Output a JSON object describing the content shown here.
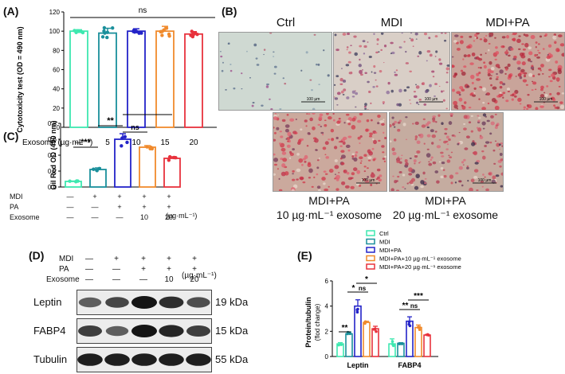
{
  "panelA": {
    "label": "(A)",
    "ylabel": "Cytotoxicity test (OD = 490 nm)",
    "yticks": [
      "0",
      "20",
      "40",
      "60",
      "80",
      "100",
      "120"
    ],
    "xprefix": "Exosome (µg·mL⁻¹)",
    "xlabels": [
      "—",
      "5",
      "10",
      "15",
      "20"
    ],
    "sig": "ns",
    "chart_data": {
      "type": "bar",
      "title": "",
      "ylabel": "Cytotoxicity test (OD = 490 nm)",
      "ylim": [
        0,
        120
      ],
      "categories": [
        "—",
        "5",
        "10",
        "15",
        "20"
      ],
      "values": [
        100,
        98,
        100,
        100,
        97
      ],
      "errors": [
        1.5,
        5,
        2.5,
        5,
        2.5
      ],
      "colors": [
        "#3ee8b0",
        "#1a8f9b",
        "#2323c8",
        "#f08a2c",
        "#e8323c"
      ]
    }
  },
  "panelB": {
    "label": "(B)",
    "top": [
      "Ctrl",
      "MDI",
      "MDI+PA"
    ],
    "bottom": [
      {
        "line1": "MDI+PA",
        "line2": "10 µg·mL⁻¹ exosome"
      },
      {
        "line1": "MDI+PA",
        "line2": "20 µg·mL⁻¹ exosome"
      }
    ],
    "scalebar": "100 µm"
  },
  "panelC": {
    "label": "(C)",
    "ylabel": "Oil Red OD (490 nm)",
    "yticks": [
      "0.0",
      "0.2",
      "0.4",
      "0.6",
      "0.8"
    ],
    "rows": [
      {
        "name": "MDI",
        "vals": [
          "—",
          "+",
          "+",
          "+",
          "+"
        ]
      },
      {
        "name": "PA",
        "vals": [
          "—",
          "—",
          "+",
          "+",
          "+"
        ]
      },
      {
        "name": "Exosome",
        "vals": [
          "—",
          "—",
          "—",
          "10",
          "20"
        ]
      }
    ],
    "unit": "(µg·mL⁻¹)",
    "sig": [
      "***",
      "**",
      "ns",
      "*"
    ],
    "chart_data": {
      "type": "bar",
      "title": "",
      "ylabel": "Oil Red OD (490 nm)",
      "ylim": [
        0,
        0.8
      ],
      "categories": [
        "Ctrl",
        "MDI",
        "MDI+PA",
        "MDI+PA+10",
        "MDI+PA+20"
      ],
      "values": [
        0.07,
        0.22,
        0.6,
        0.5,
        0.36
      ],
      "errors": [
        0.005,
        0.02,
        0.07,
        0.02,
        0.02
      ],
      "colors": [
        "#3ee8b0",
        "#1a8f9b",
        "#2323c8",
        "#f08a2c",
        "#e8323c"
      ]
    }
  },
  "panelD": {
    "label": "(D)",
    "rows": [
      {
        "name": "MDI",
        "vals": [
          "—",
          "+",
          "+",
          "+",
          "+"
        ]
      },
      {
        "name": "PA",
        "vals": [
          "—",
          "—",
          "+",
          "+",
          "+"
        ]
      },
      {
        "name": "Exosome",
        "vals": [
          "—",
          "—",
          "—",
          "10",
          "20"
        ]
      }
    ],
    "unit": "(µg·mL⁻¹)",
    "blots": [
      {
        "name": "Leptin",
        "kda": "19 kDa",
        "intensity": [
          0.55,
          0.7,
          1.0,
          0.85,
          0.65
        ]
      },
      {
        "name": "FABP4",
        "kda": "15 kDa",
        "intensity": [
          0.75,
          0.55,
          1.0,
          0.9,
          0.75
        ]
      },
      {
        "name": "Tubulin",
        "kda": "55 kDa",
        "intensity": [
          0.95,
          0.95,
          0.95,
          0.95,
          0.95
        ]
      }
    ]
  },
  "panelE": {
    "label": "(E)",
    "ylabel": "Protein/tubulin",
    "ylabel2": "(flod change)",
    "yticks": [
      "0",
      "2",
      "4",
      "6"
    ],
    "legend": [
      "Ctrl",
      "MDI",
      "MDI+PA",
      "MDI+PA+10 µg·mL⁻¹ exosome",
      "MDI+PA+20 µg·mL⁻¹ exosome"
    ],
    "sigLeptin": [
      "**",
      "*",
      "ns",
      "*"
    ],
    "sigFABP4": [
      "**",
      "ns",
      "***"
    ],
    "chart_data": {
      "type": "bar",
      "title": "",
      "ylabel": "Protein/tubulin (flod change)",
      "ylim": [
        0,
        6
      ],
      "categories": [
        "Leptin",
        "FABP4"
      ],
      "series": [
        {
          "name": "Ctrl",
          "values": [
            1.0,
            1.0
          ],
          "errors": [
            0.1,
            0.4
          ],
          "color": "#3ee8b0"
        },
        {
          "name": "MDI",
          "values": [
            1.8,
            1.05
          ],
          "errors": [
            0.15,
            0.05
          ],
          "color": "#1a8f9b"
        },
        {
          "name": "MDI+PA",
          "values": [
            4.0,
            2.8
          ],
          "errors": [
            0.5,
            0.35
          ],
          "color": "#2323c8"
        },
        {
          "name": "MDI+PA+10 µg·mL⁻¹ exosome",
          "values": [
            2.7,
            2.3
          ],
          "errors": [
            0.1,
            0.2
          ],
          "color": "#f08a2c"
        },
        {
          "name": "MDI+PA+20 µg·mL⁻¹ exosome",
          "values": [
            2.2,
            1.7
          ],
          "errors": [
            0.2,
            0.05
          ],
          "color": "#e8323c"
        }
      ]
    }
  }
}
